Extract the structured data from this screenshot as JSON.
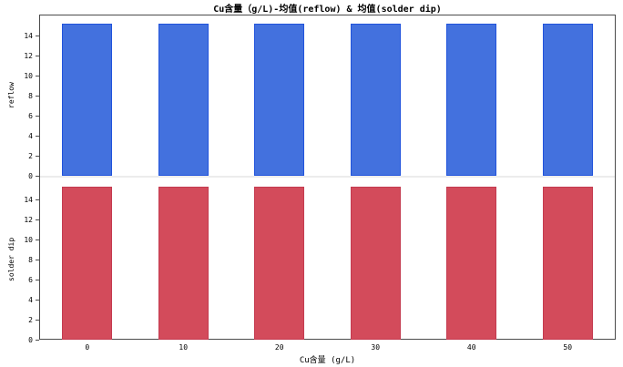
{
  "chart_data": {
    "type": "bar",
    "title": "Cu含量（g/L)-均值(reflow) & 均值(solder dip)",
    "xlabel": "Cu含量 (g/L)",
    "categories": [
      "0",
      "10",
      "20",
      "30",
      "40",
      "50"
    ],
    "panels": [
      {
        "ylabel": "reflow",
        "series_name": "均值(reflow)",
        "values": [
          15.2,
          15.2,
          15.2,
          15.2,
          15.2,
          15.2
        ],
        "yticks": [
          0,
          2,
          4,
          6,
          8,
          10,
          12,
          14
        ],
        "ylim": [
          0,
          16.1
        ],
        "bar_fill": "#4371DE",
        "bar_border": "#2153DC"
      },
      {
        "ylabel": "solder dip",
        "series_name": "均值(solder dip)",
        "values": [
          15.3,
          15.3,
          15.3,
          15.3,
          15.3,
          15.3
        ],
        "yticks": [
          0,
          2,
          4,
          6,
          8,
          10,
          12,
          14
        ],
        "ylim": [
          0,
          16.0
        ],
        "bar_fill": "#D34B5B",
        "bar_border": "#C43B50"
      }
    ],
    "layout_hints": {
      "grid": "off",
      "legend": "none",
      "orientation": "vertical",
      "frame_color": "#4b4b4b",
      "divider_color": "#ececec"
    }
  }
}
